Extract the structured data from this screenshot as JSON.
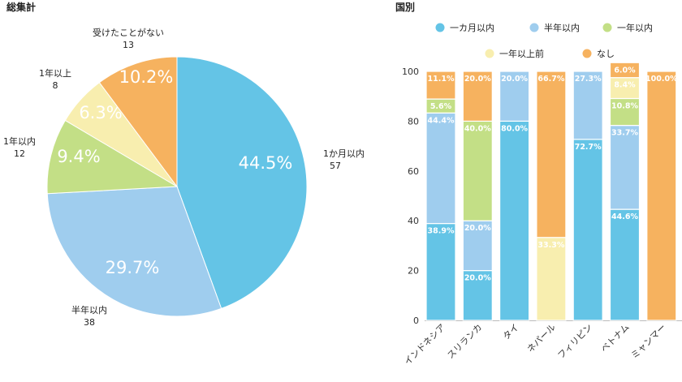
{
  "chart_data": [
    {
      "type": "pie",
      "title": "総集計",
      "slices": [
        {
          "label": "1か月以内",
          "count": "57",
          "percent": "44.5%",
          "value": 44.5,
          "color": "#64c4e6",
          "pct_color": "#ffffff"
        },
        {
          "label": "半年以内",
          "count": "38",
          "percent": "29.7%",
          "value": 29.7,
          "color": "#9fcdee",
          "pct_color": "#ffffff"
        },
        {
          "label": "1年以内",
          "count": "12",
          "percent": "9.4%",
          "value": 9.4,
          "color": "#c3df86",
          "pct_color": "#ffffff"
        },
        {
          "label": "1年以上",
          "count": "8",
          "percent": "6.3%",
          "value": 6.3,
          "color": "#f8eeaf",
          "pct_color": "#8a8a8a"
        },
        {
          "label": "受けたことがない",
          "count": "13",
          "percent": "10.2%",
          "value": 10.2,
          "color": "#f6b25f",
          "pct_color": "#ffffff"
        }
      ]
    },
    {
      "type": "bar",
      "stacked": true,
      "title": "国別",
      "categories": [
        "インドネシア",
        "スリランカ",
        "タイ",
        "ネパール",
        "フィリピン",
        "ベトナム",
        "ミャンマー"
      ],
      "series": [
        {
          "name": "一カ月以内",
          "color": "#64c4e6",
          "values": [
            38.9,
            20.0,
            80.0,
            0,
            72.7,
            44.6,
            0
          ]
        },
        {
          "name": "半年以内",
          "color": "#9fcdee",
          "values": [
            44.4,
            20.0,
            20.0,
            0,
            27.3,
            33.7,
            0
          ]
        },
        {
          "name": "一年以内",
          "color": "#c3df86",
          "values": [
            5.6,
            40.0,
            0,
            0,
            0,
            10.8,
            0
          ]
        },
        {
          "name": "一年以上前",
          "color": "#f8eeaf",
          "values": [
            0,
            0,
            0,
            33.3,
            0,
            8.4,
            0
          ]
        },
        {
          "name": "なし",
          "color": "#f6b25f",
          "values": [
            11.1,
            20.0,
            0,
            66.7,
            0,
            6.0,
            100.0
          ]
        }
      ],
      "label_text": [
        [
          "38.9%",
          "20.0%",
          "80.0%",
          "",
          "72.7%",
          "44.6%",
          ""
        ],
        [
          "44.4%",
          "20.0%",
          "20.0%",
          "",
          "27.3%",
          "33.7%",
          ""
        ],
        [
          "5.6%",
          "40.0%",
          "",
          "",
          "",
          "10.8%",
          ""
        ],
        [
          "",
          "",
          "",
          "33.3%",
          "",
          "8.4%",
          ""
        ],
        [
          "11.1%",
          "20.0%",
          "",
          "66.7%",
          "",
          "6.0%",
          "100.0%"
        ]
      ],
      "yticks": [
        "0",
        "20",
        "40",
        "60",
        "80",
        "100"
      ],
      "ylim": [
        0,
        100
      ],
      "grid": false,
      "legend_position": "top"
    }
  ]
}
